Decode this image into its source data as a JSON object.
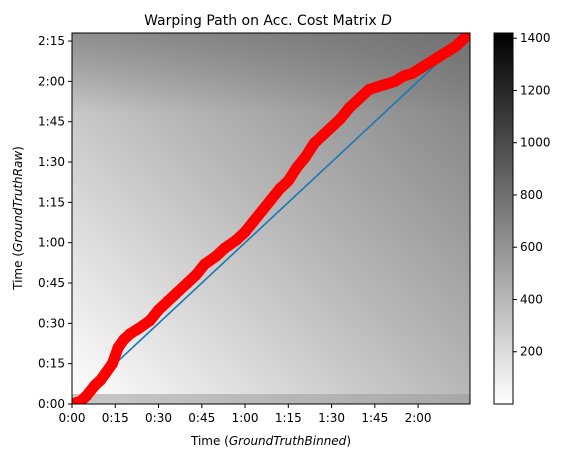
{
  "chart_data": {
    "type": "heatmap",
    "title": "Warping Path on Acc. Cost Matrix ",
    "title_var": "D",
    "xlabel": {
      "prefix": "Time (",
      "var": "GroundTruthBinned",
      "suffix": ")"
    },
    "ylabel": {
      "prefix": "Time (",
      "var": "GroundTruthRaw",
      "suffix": ")"
    },
    "x_range_minutes": [
      0,
      138
    ],
    "y_range_minutes": [
      0,
      138
    ],
    "x_ticks": [
      {
        "minutes": 0,
        "label": "0:00"
      },
      {
        "minutes": 15,
        "label": "0:15"
      },
      {
        "minutes": 30,
        "label": "0:30"
      },
      {
        "minutes": 45,
        "label": "0:45"
      },
      {
        "minutes": 60,
        "label": "1:00"
      },
      {
        "minutes": 75,
        "label": "1:15"
      },
      {
        "minutes": 90,
        "label": "1:30"
      },
      {
        "minutes": 105,
        "label": "1:45"
      },
      {
        "minutes": 120,
        "label": "2:00"
      }
    ],
    "y_ticks": [
      {
        "minutes": 0,
        "label": "0:00"
      },
      {
        "minutes": 15,
        "label": "0:15"
      },
      {
        "minutes": 30,
        "label": "0:30"
      },
      {
        "minutes": 45,
        "label": "0:45"
      },
      {
        "minutes": 60,
        "label": "1:00"
      },
      {
        "minutes": 75,
        "label": "1:15"
      },
      {
        "minutes": 90,
        "label": "1:30"
      },
      {
        "minutes": 105,
        "label": "1:45"
      },
      {
        "minutes": 120,
        "label": "2:00"
      },
      {
        "minutes": 135,
        "label": "2:15"
      }
    ],
    "colorbar": {
      "range": [
        0,
        1420
      ],
      "ticks": [
        200,
        400,
        600,
        800,
        1000,
        1200,
        1400
      ],
      "cmap": "gray_r"
    },
    "warping_path": {
      "color": "#ff0000",
      "points": [
        [
          0,
          0
        ],
        [
          3,
          1
        ],
        [
          5,
          3
        ],
        [
          8,
          7
        ],
        [
          10,
          9
        ],
        [
          12,
          12
        ],
        [
          14,
          15
        ],
        [
          16,
          21
        ],
        [
          18,
          24
        ],
        [
          20,
          26
        ],
        [
          23,
          28
        ],
        [
          27,
          31
        ],
        [
          30,
          35
        ],
        [
          33,
          38
        ],
        [
          36,
          41
        ],
        [
          40,
          45
        ],
        [
          43,
          48
        ],
        [
          46,
          52
        ],
        [
          50,
          55
        ],
        [
          53,
          58
        ],
        [
          57,
          61
        ],
        [
          60,
          64
        ],
        [
          63,
          68
        ],
        [
          66,
          72
        ],
        [
          69,
          76
        ],
        [
          72,
          80
        ],
        [
          75,
          83
        ],
        [
          78,
          88
        ],
        [
          81,
          92
        ],
        [
          84,
          97
        ],
        [
          87,
          100
        ],
        [
          90,
          103
        ],
        [
          93,
          106
        ],
        [
          96,
          110
        ],
        [
          100,
          114
        ],
        [
          103,
          117
        ],
        [
          106,
          118
        ],
        [
          109,
          119
        ],
        [
          112,
          120
        ],
        [
          115,
          122
        ],
        [
          118,
          123
        ],
        [
          121,
          125
        ],
        [
          124,
          127
        ],
        [
          127,
          129
        ],
        [
          130,
          131
        ],
        [
          133,
          133
        ],
        [
          135,
          135
        ],
        [
          138,
          138
        ]
      ]
    },
    "diagonal": {
      "color": "#1f77b4",
      "points": [
        [
          0,
          0
        ],
        [
          138,
          138
        ]
      ]
    }
  }
}
